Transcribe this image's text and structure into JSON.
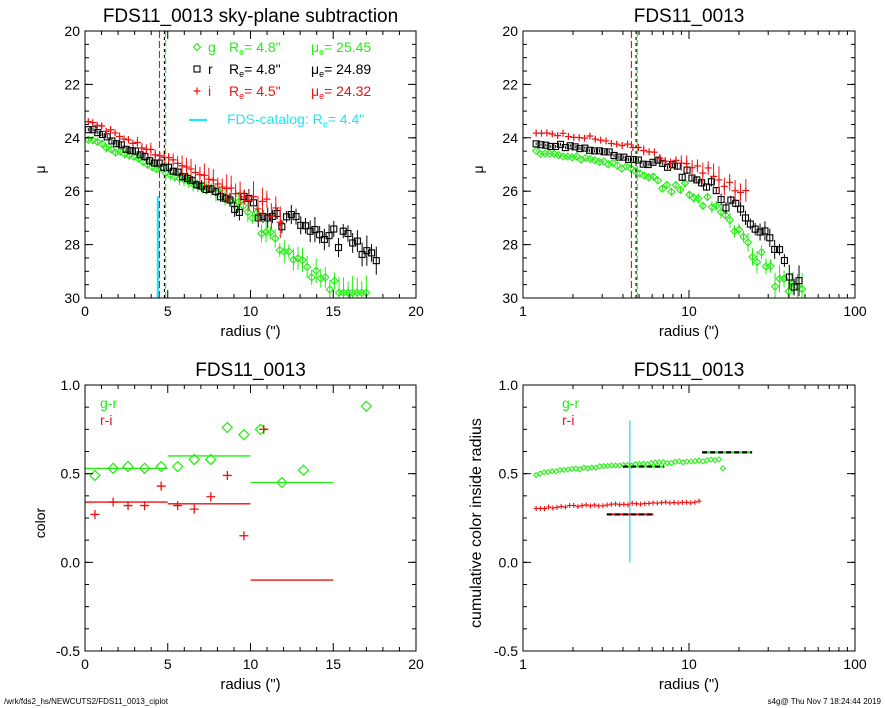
{
  "footer": {
    "left": "/wrk/fds2_hs/NEWCUTS2/FDS11_0013_ciplot",
    "right": "s4g@  Thu Nov  7 18:24:44 2019"
  },
  "colors": {
    "g": "#22ee11",
    "r": "#000000",
    "i": "#ee1111",
    "catalog": "#22e4f0"
  },
  "chart_data": [
    {
      "type": "scatter",
      "title": "FDS11_0013 sky-plane subtraction",
      "xlabel": "radius (\")",
      "ylabel": "μ",
      "xlim": [
        0,
        20
      ],
      "ylim": [
        30,
        20
      ],
      "xscale": "linear",
      "xticks": [
        "0",
        "5",
        "10",
        "15",
        "20"
      ],
      "yticks": [
        "20",
        "22",
        "24",
        "26",
        "28",
        "30"
      ],
      "legend_position": "top-right",
      "legend": [
        {
          "sym": "◇",
          "band": "g",
          "re_label": "R",
          "re_sub": "e",
          "re_val": "=  4.8\"",
          "mu_label": "μ",
          "mu_sub": "e",
          "mu_val": "= 25.45"
        },
        {
          "sym": "□",
          "band": "r",
          "re_label": "R",
          "re_sub": "e",
          "re_val": "=  4.8\"",
          "mu_label": "μ",
          "mu_sub": "e",
          "mu_val": "= 24.89"
        },
        {
          "sym": "+",
          "band": "i",
          "re_label": "R",
          "re_sub": "e",
          "re_val": "=  4.5\"",
          "mu_label": "μ",
          "mu_sub": "e",
          "mu_val": "= 24.32"
        }
      ],
      "catalog": {
        "label": "FDS-catalog: R",
        "sub": "e",
        "val": "=   4.4\"",
        "x": 4.4,
        "y_top": 26.2
      },
      "re_lines": {
        "g": 4.8,
        "r": 4.8,
        "i": 4.5
      },
      "series": [
        {
          "band": "g",
          "x0": 0.2,
          "x1": 17.0,
          "n": 62,
          "y0": 24.0,
          "slope": 0.26,
          "knee": 9.0,
          "slope2": 0.55,
          "err0": 0.08,
          "err1": 0.45
        },
        {
          "band": "r",
          "x0": 0.2,
          "x1": 17.6,
          "n": 62,
          "y0": 23.6,
          "slope": 0.31,
          "knee": 9.0,
          "slope2": 0.22,
          "err0": 0.06,
          "err1": 0.4
        },
        {
          "band": "i",
          "x0": 0.2,
          "x1": 11.8,
          "n": 44,
          "y0": 23.3,
          "slope": 0.3,
          "knee": 10.0,
          "slope2": 0.3,
          "err0": 0.06,
          "err1": 0.5
        }
      ]
    },
    {
      "type": "scatter",
      "title": "FDS11_0013",
      "xlabel": "radius (\")",
      "ylabel": "μ",
      "xlim": [
        1,
        100
      ],
      "ylim": [
        30,
        20
      ],
      "xscale": "log",
      "xticks": [
        "1",
        "10",
        "100"
      ],
      "yticks": [
        "20",
        "22",
        "24",
        "26",
        "28",
        "30"
      ],
      "re_lines": {
        "g": 4.8,
        "r": 4.8,
        "i": 4.5
      },
      "series": [
        {
          "band": "g",
          "x0": 1.2,
          "x1": 48,
          "n": 60,
          "y0": 24.3,
          "slope": 0.2,
          "knee": 6.0,
          "slope2": 0.6,
          "err0": 0.05,
          "err1": 0.5
        },
        {
          "band": "r",
          "x0": 1.2,
          "x1": 46,
          "n": 55,
          "y0": 24.0,
          "slope": 0.18,
          "knee": 6.0,
          "slope2": 0.48,
          "err0": 0.05,
          "err1": 0.4
        },
        {
          "band": "i",
          "x0": 1.2,
          "x1": 22,
          "n": 40,
          "y0": 23.6,
          "slope": 0.16,
          "knee": 6.5,
          "slope2": 0.42,
          "err0": 0.05,
          "err1": 0.5
        }
      ]
    },
    {
      "type": "scatter",
      "title": "FDS11_0013",
      "xlabel": "radius (\")",
      "ylabel": "color",
      "xlim": [
        0,
        20
      ],
      "ylim": [
        -0.5,
        1.0
      ],
      "xscale": "linear",
      "xticks": [
        "0",
        "5",
        "10",
        "15",
        "20"
      ],
      "yticks": [
        "-0.5",
        "0.0",
        "0.5",
        "1.0"
      ],
      "legend_position": "top-left",
      "legend": [
        {
          "band": "g",
          "text": "g-r"
        },
        {
          "band": "i",
          "text": "r-i"
        }
      ],
      "gr_points": {
        "x": [
          0.6,
          1.7,
          2.6,
          3.6,
          4.6,
          5.6,
          6.6,
          7.6,
          8.6,
          9.6,
          10.6,
          11.9,
          13.2,
          17.0
        ],
        "y": [
          0.49,
          0.53,
          0.54,
          0.53,
          0.54,
          0.54,
          0.58,
          0.58,
          0.76,
          0.72,
          0.75,
          0.45,
          0.52,
          0.88
        ]
      },
      "ri_points": {
        "x": [
          0.6,
          1.7,
          2.6,
          3.6,
          4.6,
          5.6,
          6.6,
          7.6,
          8.6,
          9.6,
          10.8
        ],
        "y": [
          0.27,
          0.34,
          0.32,
          0.32,
          0.43,
          0.32,
          0.3,
          0.37,
          0.49,
          0.15,
          0.75
        ]
      },
      "gr_segments": [
        {
          "x": [
            0,
            5
          ],
          "y": 0.53
        },
        {
          "x": [
            5,
            10
          ],
          "y": 0.6
        },
        {
          "x": [
            10,
            15
          ],
          "y": 0.45
        }
      ],
      "ri_segments": [
        {
          "x": [
            0,
            5
          ],
          "y": 0.34
        },
        {
          "x": [
            5,
            10
          ],
          "y": 0.33
        },
        {
          "x": [
            10,
            15
          ],
          "y": -0.1
        }
      ]
    },
    {
      "type": "scatter",
      "title": "FDS11_0013",
      "xlabel": "radius (\")",
      "ylabel": "cumulative color inside radius",
      "xlim": [
        1,
        100
      ],
      "ylim": [
        -0.5,
        1.0
      ],
      "xscale": "log",
      "xticks": [
        "1",
        "10",
        "100"
      ],
      "yticks": [
        "-0.5",
        "0.0",
        "0.5",
        "1.0"
      ],
      "legend_position": "top-left",
      "legend": [
        {
          "band": "g",
          "text": "g-r"
        },
        {
          "band": "i",
          "text": "r-i"
        }
      ],
      "gr_curve": {
        "x0": 1.2,
        "x1": 16,
        "n": 48,
        "y0": 0.49,
        "y1": 0.58
      },
      "ri_curve": {
        "x0": 1.2,
        "x1": 11.5,
        "n": 40,
        "y0": 0.3,
        "y1": 0.34
      },
      "catalog_x": 4.4,
      "catalog_y": [
        0.0,
        0.8
      ],
      "dashed_segments": [
        {
          "x": [
            3.2,
            6.1
          ],
          "y": 0.27,
          "band": "i"
        },
        {
          "x": [
            4.0,
            7.1
          ],
          "y": 0.54,
          "band": "g"
        },
        {
          "x": [
            12.0,
            24.0
          ],
          "y": 0.62,
          "band": "g"
        }
      ]
    }
  ]
}
